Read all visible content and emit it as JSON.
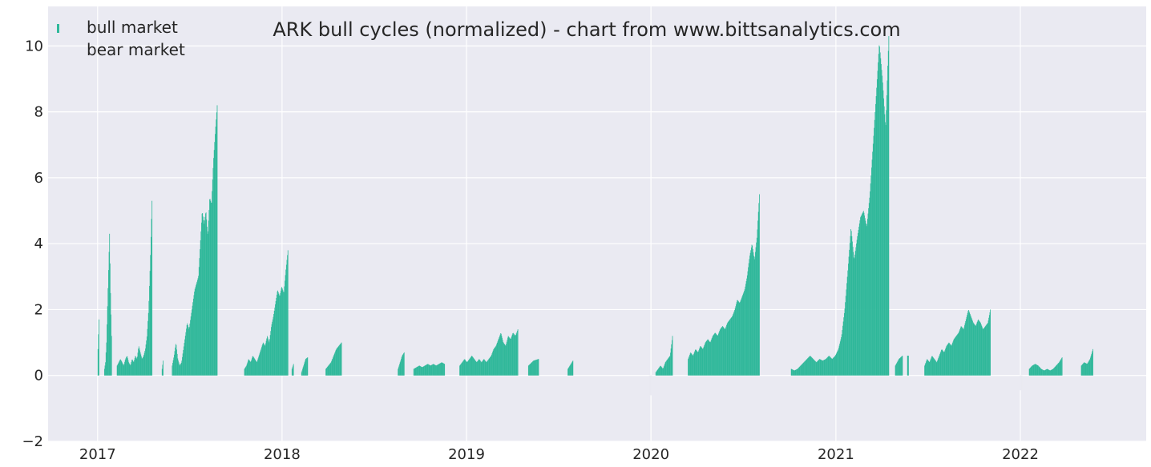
{
  "chart_data": {
    "type": "bar",
    "title": "ARK bull cycles (normalized)  - chart from www.bittsanalytics.com",
    "xlabel": "",
    "ylabel": "",
    "xlim": [
      "2016-09-25",
      "2022-09-07"
    ],
    "ylim": [
      -2,
      11.2
    ],
    "yticks": [
      -2,
      0,
      2,
      4,
      6,
      8,
      10
    ],
    "ytick_labels": [
      "−2",
      "0",
      "2",
      "4",
      "6",
      "8",
      "10"
    ],
    "xticks": [
      "2017-01-01",
      "2018-01-01",
      "2019-01-01",
      "2020-01-01",
      "2021-01-01",
      "2022-01-01"
    ],
    "xtick_labels": [
      "2017",
      "2018",
      "2019",
      "2020",
      "2021",
      "2022"
    ],
    "grid": true,
    "legend_position": "top-left",
    "colors": {
      "bull": "#2fb89a",
      "bear": "#e9e9f1",
      "background": "#eaeaf2",
      "grid": "#ffffff"
    },
    "series": [
      {
        "name": "bull market",
        "segments": [
          {
            "start": "2017-01-01",
            "end": "2017-01-03",
            "values": [
              0.8,
              1.7
            ]
          },
          {
            "start": "2017-01-14",
            "end": "2017-01-28",
            "values": [
              0.2,
              0.4,
              1.0,
              2.1,
              3.2,
              4.3,
              2.5,
              1.2
            ]
          },
          {
            "start": "2017-02-08",
            "end": "2017-04-18",
            "values": [
              0.3,
              0.4,
              0.5,
              0.4,
              0.3,
              0.5,
              0.6,
              0.4,
              0.3,
              0.5,
              0.4,
              0.6,
              0.5,
              0.9,
              0.7,
              0.5,
              0.6,
              0.8,
              1.2,
              2.0,
              3.5,
              5.3
            ]
          },
          {
            "start": "2017-05-08",
            "end": "2017-05-10",
            "values": [
              0.2,
              0.45
            ]
          },
          {
            "start": "2017-05-28",
            "end": "2017-08-25",
            "values": [
              0.3,
              0.6,
              1.0,
              0.5,
              0.3,
              0.4,
              0.8,
              1.2,
              1.6,
              1.4,
              1.8,
              2.2,
              2.6,
              2.8,
              3.0,
              4.0,
              5.0,
              4.6,
              5.0,
              4.2,
              5.4,
              5.2,
              6.5,
              7.4,
              8.2
            ]
          },
          {
            "start": "2017-10-18",
            "end": "2018-01-12",
            "values": [
              0.2,
              0.3,
              0.5,
              0.4,
              0.6,
              0.5,
              0.4,
              0.6,
              0.8,
              1.0,
              0.9,
              1.2,
              1.0,
              1.5,
              1.8,
              2.2,
              2.6,
              2.4,
              2.7,
              2.5,
              3.2,
              3.8
            ]
          },
          {
            "start": "2018-01-20",
            "end": "2018-01-23",
            "values": [
              0.2,
              0.35
            ]
          },
          {
            "start": "2018-02-08",
            "end": "2018-02-20",
            "values": [
              0.1,
              0.3,
              0.5,
              0.55
            ]
          },
          {
            "start": "2018-03-28",
            "end": "2018-04-28",
            "values": [
              0.2,
              0.3,
              0.4,
              0.6,
              0.8,
              0.9,
              1.0
            ]
          },
          {
            "start": "2018-08-18",
            "end": "2018-08-30",
            "values": [
              0.2,
              0.4,
              0.6,
              0.7
            ]
          },
          {
            "start": "2018-09-18",
            "end": "2018-11-18",
            "values": [
              0.2,
              0.25,
              0.3,
              0.25,
              0.3,
              0.35,
              0.3,
              0.35,
              0.3,
              0.35,
              0.4,
              0.35
            ]
          },
          {
            "start": "2018-12-18",
            "end": "2019-04-12",
            "values": [
              0.3,
              0.4,
              0.5,
              0.4,
              0.5,
              0.6,
              0.5,
              0.4,
              0.5,
              0.4,
              0.5,
              0.4,
              0.5,
              0.6,
              0.8,
              0.9,
              1.1,
              1.3,
              1.0,
              0.9,
              1.2,
              1.1,
              1.3,
              1.2,
              1.4
            ]
          },
          {
            "start": "2019-05-03",
            "end": "2019-05-23",
            "values": [
              0.3,
              0.45,
              0.5
            ]
          },
          {
            "start": "2019-07-20",
            "end": "2019-07-30",
            "values": [
              0.2,
              0.45
            ]
          },
          {
            "start": "2020-01-10",
            "end": "2020-02-12",
            "values": [
              0.1,
              0.2,
              0.3,
              0.2,
              0.4,
              0.5,
              0.6,
              1.2
            ]
          },
          {
            "start": "2020-03-14",
            "end": "2020-08-02",
            "values": [
              0.5,
              0.7,
              0.6,
              0.8,
              0.7,
              0.9,
              0.8,
              1.0,
              1.1,
              1.0,
              1.2,
              1.3,
              1.2,
              1.4,
              1.5,
              1.4,
              1.6,
              1.7,
              1.8,
              2.0,
              2.3,
              2.2,
              2.4,
              2.6,
              3.0,
              3.6,
              4.0,
              3.5,
              4.2,
              5.5
            ]
          },
          {
            "start": "2020-10-04",
            "end": "2021-04-15",
            "values": [
              0.2,
              0.15,
              0.2,
              0.3,
              0.4,
              0.5,
              0.6,
              0.5,
              0.4,
              0.5,
              0.45,
              0.5,
              0.6,
              0.5,
              0.6,
              0.8,
              1.2,
              2.0,
              3.2,
              4.5,
              3.5,
              4.2,
              4.8,
              5.0,
              4.5,
              5.5,
              7.0,
              8.5,
              10.1,
              9.0,
              7.5,
              10.3
            ]
          },
          {
            "start": "2021-04-28",
            "end": "2021-05-12",
            "values": [
              0.3,
              0.5,
              0.6
            ]
          },
          {
            "start": "2021-05-22",
            "end": "2021-05-24",
            "values": [
              0.6
            ]
          },
          {
            "start": "2021-06-25",
            "end": "2021-11-02",
            "values": [
              0.3,
              0.5,
              0.4,
              0.6,
              0.5,
              0.4,
              0.6,
              0.8,
              0.7,
              0.9,
              1.0,
              0.9,
              1.1,
              1.2,
              1.3,
              1.5,
              1.4,
              1.7,
              2.0,
              1.8,
              1.6,
              1.5,
              1.7,
              1.6,
              1.4,
              1.5,
              1.6,
              2.0
            ]
          },
          {
            "start": "2022-01-18",
            "end": "2022-03-24",
            "values": [
              0.2,
              0.3,
              0.35,
              0.3,
              0.2,
              0.15,
              0.2,
              0.15,
              0.2,
              0.3,
              0.4,
              0.55
            ]
          },
          {
            "start": "2022-05-01",
            "end": "2022-05-24",
            "values": [
              0.3,
              0.4,
              0.35,
              0.5,
              0.8
            ]
          }
        ]
      },
      {
        "name": "bear market",
        "segments": [
          {
            "start": "2019-12-28",
            "end": "2020-01-02",
            "values": [
              -0.6
            ]
          },
          {
            "start": "2021-12-31",
            "end": "2022-01-04",
            "values": [
              -0.45
            ]
          }
        ]
      }
    ]
  }
}
